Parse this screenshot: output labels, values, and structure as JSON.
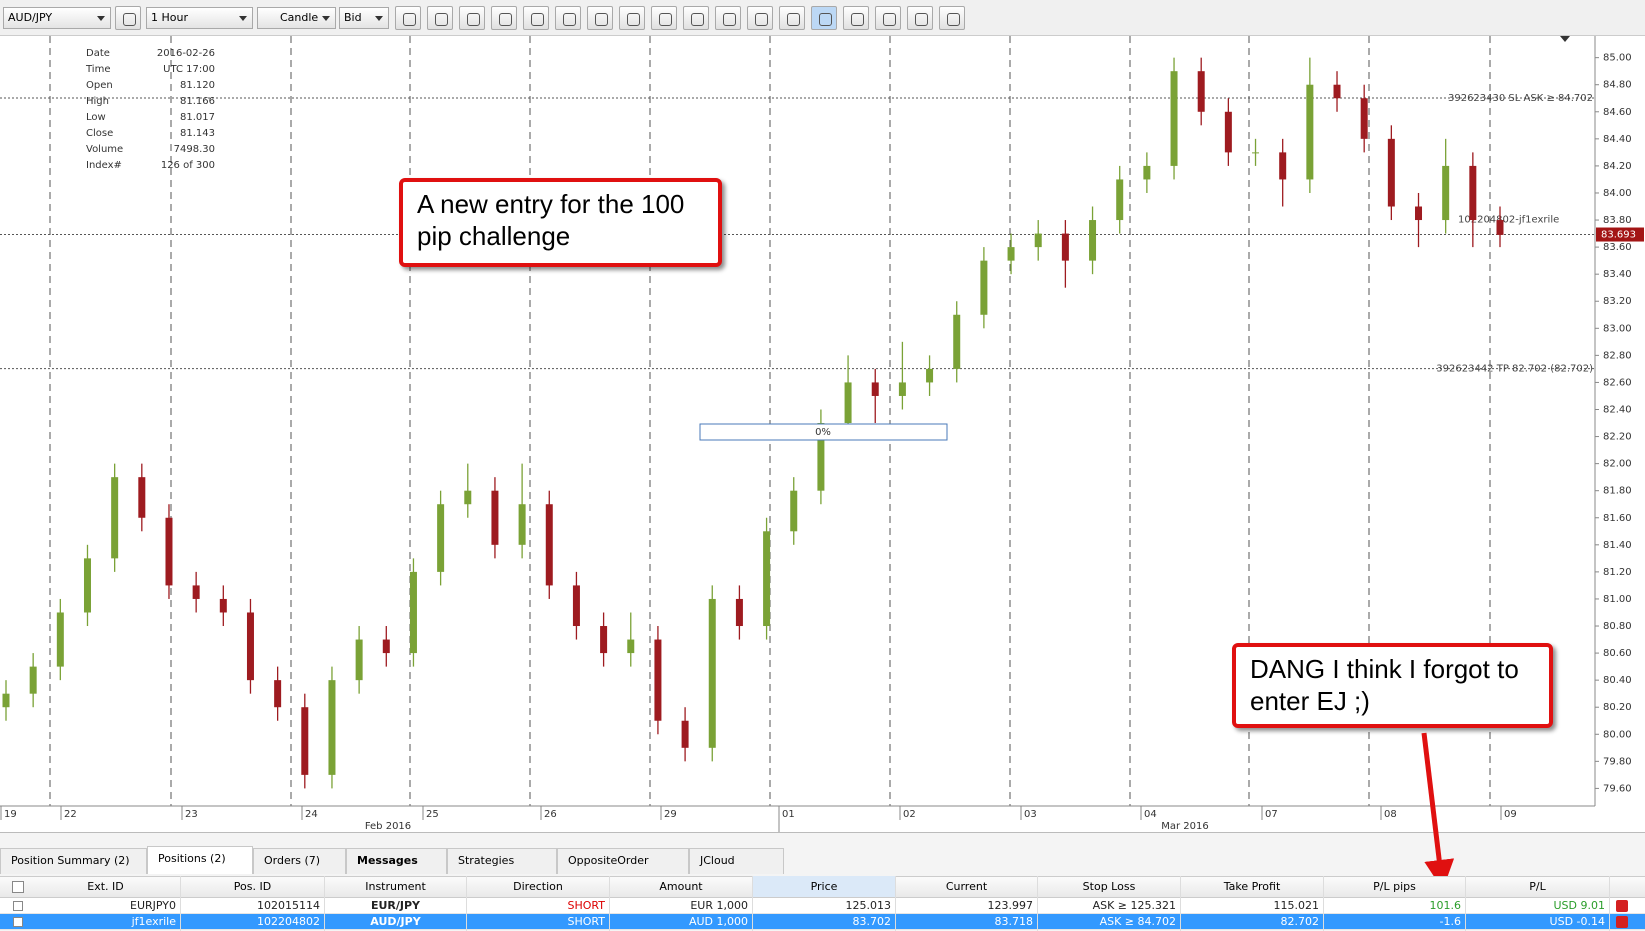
{
  "toolbar": {
    "instrument": "AUD/JPY",
    "period": "1 Hour",
    "chart_type": "Candle",
    "side": "Bid"
  },
  "info": {
    "rows": [
      [
        "Date",
        "2016-02-26"
      ],
      [
        "Time",
        "UTC 17:00"
      ],
      [
        "Open",
        "81.120"
      ],
      [
        "High",
        "81.166"
      ],
      [
        "Low",
        "81.017"
      ],
      [
        "Close",
        "81.143"
      ],
      [
        "Volume",
        "7498.30"
      ],
      [
        "Index#",
        "126 of 300"
      ]
    ]
  },
  "chart": {
    "type": "candlestick",
    "up_color": "#7aa236",
    "down_color": "#9e1b20",
    "grid": true,
    "ylim": [
      79.47,
      85.16
    ],
    "yticks": [
      {
        "value": 79.6,
        "label": "79.60"
      },
      {
        "value": 79.8,
        "label": "79.80"
      },
      {
        "value": 80,
        "label": "80.00"
      },
      {
        "value": 80.2,
        "label": "80.20"
      },
      {
        "value": 80.4,
        "label": "80.40"
      },
      {
        "value": 80.6,
        "label": "80.60"
      },
      {
        "value": 80.8,
        "label": "80.80"
      },
      {
        "value": 81,
        "label": "81.00"
      },
      {
        "value": 81.2,
        "label": "81.20"
      },
      {
        "value": 81.4,
        "label": "81.40"
      },
      {
        "value": 81.6,
        "label": "81.60"
      },
      {
        "value": 81.8,
        "label": "81.80"
      },
      {
        "value": 82,
        "label": "82.00"
      },
      {
        "value": 82.2,
        "label": "82.20"
      },
      {
        "value": 82.4,
        "label": "82.40"
      },
      {
        "value": 82.6,
        "label": "82.60"
      },
      {
        "value": 82.8,
        "label": "82.80"
      },
      {
        "value": 83,
        "label": "83.00"
      },
      {
        "value": 83.2,
        "label": "83.20"
      },
      {
        "value": 83.4,
        "label": "83.40"
      },
      {
        "value": 83.6,
        "label": "83.60"
      },
      {
        "value": 83.8,
        "label": "83.80"
      },
      {
        "value": 84,
        "label": "84.00"
      },
      {
        "value": 84.2,
        "label": "84.20"
      },
      {
        "value": 84.4,
        "label": "84.40"
      },
      {
        "value": 84.6,
        "label": "84.60"
      },
      {
        "value": 84.8,
        "label": "84.80"
      },
      {
        "value": 85,
        "label": "85.00"
      }
    ],
    "day_labels": [
      "19",
      "22",
      "23",
      "24",
      "25",
      "26",
      "29",
      "01",
      "02",
      "03",
      "04",
      "07",
      "08",
      "09"
    ],
    "month_labels": [
      "Feb 2016",
      "Mar 2016"
    ],
    "candles": [
      [
        80.2,
        80.4,
        80.1,
        80.3
      ],
      [
        80.3,
        80.6,
        80.2,
        80.5
      ],
      [
        80.5,
        81.0,
        80.4,
        80.9
      ],
      [
        80.9,
        81.4,
        80.8,
        81.3
      ],
      [
        81.3,
        82.0,
        81.2,
        81.9
      ],
      [
        81.9,
        82.0,
        81.5,
        81.6
      ],
      [
        81.6,
        81.7,
        81.0,
        81.1
      ],
      [
        81.1,
        81.2,
        80.9,
        81.0
      ],
      [
        81.0,
        81.1,
        80.8,
        80.9
      ],
      [
        80.9,
        81.0,
        80.3,
        80.4
      ],
      [
        80.4,
        80.5,
        80.1,
        80.2
      ],
      [
        80.2,
        80.3,
        79.6,
        79.7
      ],
      [
        79.7,
        80.5,
        79.6,
        80.4
      ],
      [
        80.4,
        80.8,
        80.3,
        80.7
      ],
      [
        80.7,
        80.8,
        80.5,
        80.6
      ],
      [
        80.6,
        81.3,
        80.5,
        81.2
      ],
      [
        81.2,
        81.8,
        81.1,
        81.7
      ],
      [
        81.7,
        82.0,
        81.6,
        81.8
      ],
      [
        81.8,
        81.9,
        81.3,
        81.4
      ],
      [
        81.4,
        82.0,
        81.3,
        81.7
      ],
      [
        81.7,
        81.8,
        81.0,
        81.1
      ],
      [
        81.1,
        81.2,
        80.7,
        80.8
      ],
      [
        80.8,
        80.9,
        80.5,
        80.6
      ],
      [
        80.6,
        80.9,
        80.5,
        80.7
      ],
      [
        80.7,
        80.8,
        80.0,
        80.1
      ],
      [
        80.1,
        80.2,
        79.8,
        79.9
      ],
      [
        79.9,
        81.1,
        79.8,
        81.0
      ],
      [
        81.0,
        81.1,
        80.7,
        80.8
      ],
      [
        80.8,
        81.6,
        80.7,
        81.5
      ],
      [
        81.5,
        81.9,
        81.4,
        81.8
      ],
      [
        81.8,
        82.4,
        81.7,
        82.3
      ],
      [
        82.3,
        82.8,
        82.2,
        82.6
      ],
      [
        82.6,
        82.7,
        82.3,
        82.5
      ],
      [
        82.5,
        82.9,
        82.4,
        82.6
      ],
      [
        82.6,
        82.8,
        82.5,
        82.7
      ],
      [
        82.7,
        83.2,
        82.6,
        83.1
      ],
      [
        83.1,
        83.6,
        83.0,
        83.5
      ],
      [
        83.5,
        83.7,
        83.4,
        83.6
      ],
      [
        83.6,
        83.8,
        83.5,
        83.7
      ],
      [
        83.7,
        83.8,
        83.3,
        83.5
      ],
      [
        83.5,
        83.9,
        83.4,
        83.8
      ],
      [
        83.8,
        84.2,
        83.7,
        84.1
      ],
      [
        84.1,
        84.3,
        84.0,
        84.2
      ],
      [
        84.2,
        85.0,
        84.1,
        84.9
      ],
      [
        84.9,
        85.0,
        84.5,
        84.6
      ],
      [
        84.6,
        84.7,
        84.2,
        84.3
      ],
      [
        84.3,
        84.4,
        84.2,
        84.3
      ],
      [
        84.3,
        84.4,
        83.9,
        84.1
      ],
      [
        84.1,
        85.0,
        84.0,
        84.8
      ],
      [
        84.8,
        84.9,
        84.6,
        84.7
      ],
      [
        84.7,
        84.8,
        84.3,
        84.4
      ],
      [
        84.4,
        84.5,
        83.8,
        83.9
      ],
      [
        83.9,
        84.0,
        83.6,
        83.8
      ],
      [
        83.8,
        84.4,
        83.7,
        84.2
      ],
      [
        84.2,
        84.3,
        83.6,
        83.8
      ],
      [
        83.8,
        83.9,
        83.6,
        83.69
      ]
    ],
    "levels": [
      {
        "value": 84.702,
        "label": "392623430 SL ASK ≥ 84.702"
      },
      {
        "value": 83.693,
        "label": "102204802-jf1exrile",
        "price_tag": "83.693"
      },
      {
        "value": 82.702,
        "label": "392623442 TP 82.702 (82.702)"
      }
    ],
    "progress": "0%"
  },
  "annotations": [
    "A new entry for the 100 pip challenge",
    "DANG I think I forgot to enter EJ ;)"
  ],
  "tabs": [
    "Position Summary (2)",
    "Positions (2)",
    "Orders (7)",
    "Messages",
    "Strategies",
    "OppositeOrder",
    "JCloud"
  ],
  "table": {
    "columns": [
      "Ext. ID",
      "Pos. ID",
      "Instrument",
      "Direction",
      "Amount",
      "Price",
      "Current",
      "Stop Loss",
      "Take Profit",
      "P/L pips",
      "P/L"
    ],
    "rows": [
      [
        "EURJPY0",
        "102015114",
        "EUR/JPY",
        "SHORT",
        "EUR 1,000",
        "125.013",
        "123.997",
        "ASK ≥ 125.321",
        "115.021",
        "101.6",
        "USD 9.01"
      ],
      [
        "jf1exrile",
        "102204802",
        "AUD/JPY",
        "SHORT",
        "AUD 1,000",
        "83.702",
        "83.718",
        "ASK ≥ 84.702",
        "82.702",
        "-1.6",
        "USD -0.14"
      ]
    ]
  }
}
